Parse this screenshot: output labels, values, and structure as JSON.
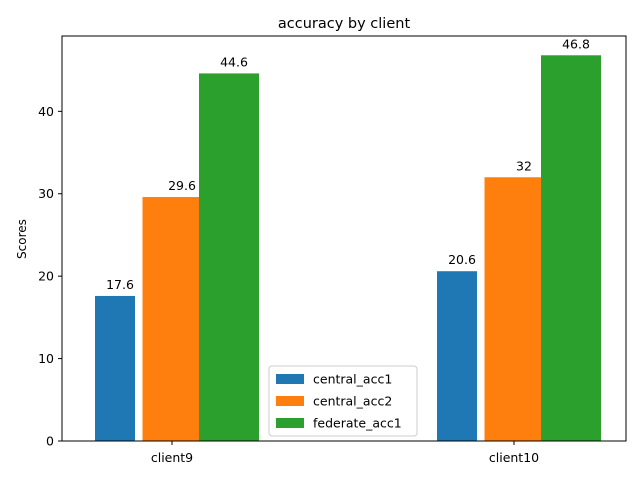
{
  "chart_data": {
    "type": "bar",
    "title": "accuracy by client",
    "xlabel": "",
    "ylabel": "Scores",
    "categories": [
      "client9",
      "client10"
    ],
    "ylim": [
      0,
      49.14
    ],
    "yticks": [
      0,
      10,
      20,
      30,
      40
    ],
    "grid": false,
    "legend_position": "bottom-center",
    "series": [
      {
        "name": "central_acc1",
        "values": [
          17.6,
          20.6
        ],
        "labels": [
          "17.6",
          "20.6"
        ],
        "color": "#1f77b4"
      },
      {
        "name": "central_acc2",
        "values": [
          29.6,
          32
        ],
        "labels": [
          "29.6",
          "32"
        ],
        "color": "#ff7f0e"
      },
      {
        "name": "federate_acc1",
        "values": [
          44.6,
          46.8
        ],
        "labels": [
          "44.6",
          "46.8"
        ],
        "color": "#2ca02c"
      }
    ]
  }
}
